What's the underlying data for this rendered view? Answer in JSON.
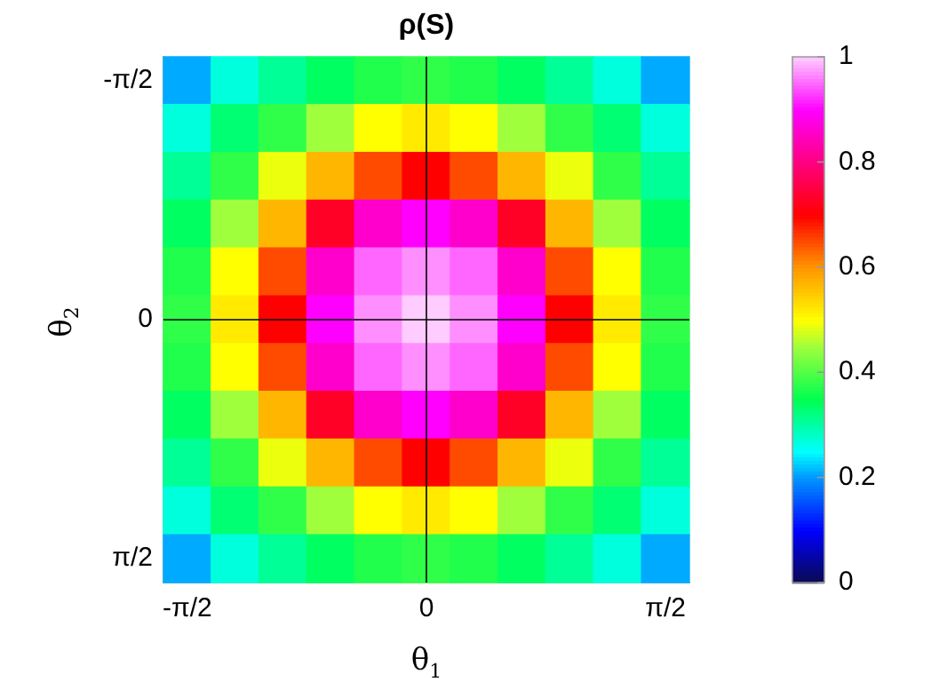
{
  "chart_data": {
    "type": "heatmap",
    "title": "ρ(S)",
    "xlabel": "θ$_{1}$",
    "ylabel": "θ$_{2}$",
    "categories": [
      "-π/2",
      null,
      null,
      null,
      null,
      "0",
      null,
      null,
      null,
      null,
      "π/2"
    ],
    "y_categories": [
      "-π/2",
      null,
      null,
      null,
      null,
      "0",
      null,
      null,
      null,
      null,
      "π/2"
    ],
    "cells": [
      [
        0.21,
        0.27,
        0.31,
        0.34,
        0.37,
        0.38,
        0.37,
        0.34,
        0.31,
        0.27,
        0.21
      ],
      [
        0.27,
        0.33,
        0.38,
        0.45,
        0.5,
        0.52,
        0.5,
        0.45,
        0.38,
        0.33,
        0.27
      ],
      [
        0.31,
        0.38,
        0.49,
        0.57,
        0.65,
        0.7,
        0.65,
        0.57,
        0.49,
        0.38,
        0.31
      ],
      [
        0.34,
        0.45,
        0.57,
        0.73,
        0.86,
        0.9,
        0.86,
        0.73,
        0.57,
        0.45,
        0.34
      ],
      [
        0.37,
        0.5,
        0.65,
        0.86,
        0.95,
        0.97,
        0.95,
        0.86,
        0.65,
        0.5,
        0.37
      ],
      [
        0.38,
        0.52,
        0.7,
        0.9,
        0.97,
        1,
        0.97,
        0.9,
        0.7,
        0.52,
        0.38
      ],
      [
        0.37,
        0.5,
        0.65,
        0.86,
        0.95,
        0.97,
        0.95,
        0.86,
        0.65,
        0.5,
        0.37
      ],
      [
        0.34,
        0.45,
        0.57,
        0.73,
        0.86,
        0.9,
        0.86,
        0.73,
        0.57,
        0.45,
        0.34
      ],
      [
        0.31,
        0.38,
        0.49,
        0.57,
        0.65,
        0.7,
        0.65,
        0.57,
        0.49,
        0.38,
        0.31
      ],
      [
        0.27,
        0.33,
        0.38,
        0.45,
        0.5,
        0.52,
        0.5,
        0.45,
        0.38,
        0.33,
        0.27
      ],
      [
        0.21,
        0.27,
        0.31,
        0.34,
        0.37,
        0.38,
        0.37,
        0.34,
        0.31,
        0.27,
        0.21
      ]
    ],
    "clim": [
      0,
      1
    ],
    "cticks": [
      0,
      0.2,
      0.4,
      0.6,
      0.8,
      1
    ],
    "grid": true,
    "legend": false
  }
}
